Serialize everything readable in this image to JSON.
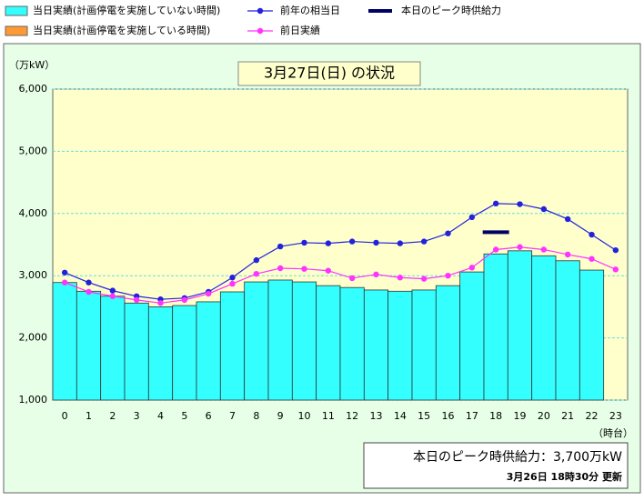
{
  "chart_data": {
    "type": "bar-line",
    "title": "3月27日(日) の状況",
    "y_label": "（万kW）",
    "x_label": "（時台）",
    "categories": [
      "0",
      "1",
      "2",
      "3",
      "4",
      "5",
      "6",
      "7",
      "8",
      "9",
      "10",
      "11",
      "12",
      "13",
      "14",
      "15",
      "16",
      "17",
      "18",
      "19",
      "20",
      "21",
      "22",
      "23"
    ],
    "series": [
      {
        "name": "当日実績(計画停電を実施していない時間)",
        "kind": "bar",
        "color": "#33ffff",
        "values": [
          2890,
          2750,
          2670,
          2560,
          2500,
          2520,
          2580,
          2740,
          2900,
          2930,
          2900,
          2840,
          2810,
          2770,
          2750,
          2770,
          2840,
          3060,
          3350,
          3400,
          3320,
          3240,
          3090,
          null
        ]
      },
      {
        "name": "当日実績(計画停電を実施している時間)",
        "kind": "bar",
        "color": "#ff9933",
        "values": [
          null,
          null,
          null,
          null,
          null,
          null,
          null,
          null,
          null,
          null,
          null,
          null,
          null,
          null,
          null,
          null,
          null,
          null,
          null,
          null,
          null,
          null,
          null,
          null
        ]
      },
      {
        "name": "前年の相当日",
        "kind": "line",
        "color": "#2222dd",
        "values": [
          3050,
          2890,
          2760,
          2670,
          2620,
          2640,
          2740,
          2970,
          3250,
          3470,
          3530,
          3520,
          3550,
          3530,
          3520,
          3550,
          3680,
          3940,
          4160,
          4150,
          4070,
          3910,
          3660,
          3410
        ]
      },
      {
        "name": "前日実績",
        "kind": "line",
        "color": "#ff33ff",
        "values": [
          2890,
          2740,
          2670,
          2610,
          2560,
          2610,
          2710,
          2870,
          3030,
          3120,
          3110,
          3080,
          2960,
          3020,
          2970,
          2950,
          3000,
          3130,
          3420,
          3460,
          3420,
          3340,
          3270,
          3100
        ]
      },
      {
        "name": "本日のピーク時供給力",
        "kind": "dash",
        "color": "#000066",
        "values": [
          null,
          null,
          null,
          null,
          null,
          null,
          null,
          null,
          null,
          null,
          null,
          null,
          null,
          null,
          null,
          null,
          null,
          null,
          3700,
          null,
          null,
          null,
          null,
          null
        ]
      }
    ],
    "ylim": [
      1000,
      6000
    ],
    "yticks": [
      {
        "value": 1000,
        "label": "1,000"
      },
      {
        "value": 2000,
        "label": "2,000"
      },
      {
        "value": 3000,
        "label": "3,000"
      },
      {
        "value": 4000,
        "label": "4,000"
      },
      {
        "value": 5000,
        "label": "5,000"
      },
      {
        "value": 6000,
        "label": "6,000"
      }
    ],
    "grid": true,
    "peak_text": "本日のピーク時供給力：3,700万kW",
    "update_text": "3月26日 18時30分 更新"
  }
}
